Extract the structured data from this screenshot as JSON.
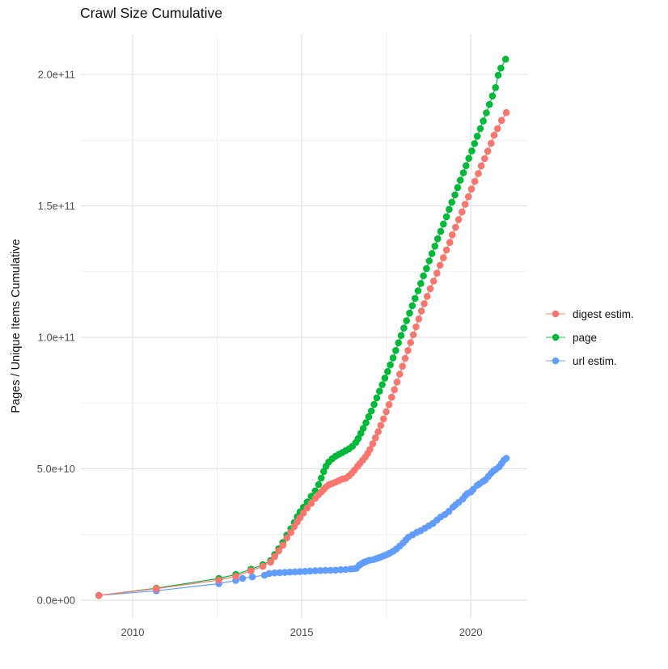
{
  "title": "Crawl Size Cumulative",
  "chart_data": {
    "type": "line",
    "title": "Crawl Size Cumulative",
    "ylabel": "Pages / Unique Items Cumulative",
    "xlabel": "",
    "grid": "on",
    "legend_position": "right",
    "value_unit_note": "point values stored in billions (1e9)",
    "xlim": [
      2008.47,
      2021.67
    ],
    "ylim_billions": [
      -6.77,
      215.4
    ],
    "x_ticks": [
      {
        "label": "2010",
        "value": 2010
      },
      {
        "label": "2015",
        "value": 2015
      },
      {
        "label": "2020",
        "value": 2020
      }
    ],
    "x_minor": [
      2012.5,
      2017.5
    ],
    "y_ticks": [
      {
        "label": "0.0e+00",
        "value": 0
      },
      {
        "label": "5.0e+10",
        "value": 50
      },
      {
        "label": "1.0e+11",
        "value": 100
      },
      {
        "label": "1.5e+11",
        "value": 150
      },
      {
        "label": "2.0e+11",
        "value": 200
      }
    ],
    "y_minor": [
      25,
      75,
      125,
      175
    ],
    "series": [
      {
        "name": "digest estim.",
        "color": "#F8766D",
        "z": 3,
        "points": [
          [
            2009.0,
            1.8
          ],
          [
            2010.7,
            4.4
          ],
          [
            2012.55,
            7.7
          ],
          [
            2013.05,
            9.1
          ],
          [
            2013.5,
            11.2
          ],
          [
            2013.85,
            12.9
          ],
          [
            2014.08,
            14.5
          ],
          [
            2014.2,
            16.6
          ],
          [
            2014.32,
            18.8
          ],
          [
            2014.44,
            20.9
          ],
          [
            2014.56,
            23.7
          ],
          [
            2014.68,
            25.8
          ],
          [
            2014.78,
            28.0
          ],
          [
            2014.87,
            29.8
          ],
          [
            2014.95,
            31.4
          ],
          [
            2015.05,
            33.2
          ],
          [
            2015.16,
            35.1
          ],
          [
            2015.28,
            36.9
          ],
          [
            2015.4,
            38.8
          ],
          [
            2015.5,
            40.2
          ],
          [
            2015.58,
            41.2
          ],
          [
            2015.65,
            42.2
          ],
          [
            2015.72,
            43.1
          ],
          [
            2015.8,
            43.9
          ],
          [
            2015.9,
            44.4
          ],
          [
            2016.0,
            44.9
          ],
          [
            2016.1,
            45.5
          ],
          [
            2016.2,
            46.1
          ],
          [
            2016.3,
            46.4
          ],
          [
            2016.4,
            47.3
          ],
          [
            2016.48,
            48.3
          ],
          [
            2016.56,
            49.5
          ],
          [
            2016.65,
            50.9
          ],
          [
            2016.72,
            52.0
          ],
          [
            2016.8,
            53.2
          ],
          [
            2016.88,
            54.5
          ],
          [
            2016.95,
            55.8
          ],
          [
            2017.02,
            57.4
          ],
          [
            2017.1,
            59.5
          ],
          [
            2017.18,
            61.8
          ],
          [
            2017.26,
            64.1
          ],
          [
            2017.34,
            66.5
          ],
          [
            2017.42,
            69.0
          ],
          [
            2017.5,
            71.7
          ],
          [
            2017.58,
            74.4
          ],
          [
            2017.66,
            77.2
          ],
          [
            2017.74,
            80.1
          ],
          [
            2017.82,
            83.0
          ],
          [
            2017.9,
            86.0
          ],
          [
            2017.98,
            89.0
          ],
          [
            2018.06,
            92.0
          ],
          [
            2018.14,
            95.0
          ],
          [
            2018.22,
            98.0
          ],
          [
            2018.3,
            101.0
          ],
          [
            2018.38,
            104.0
          ],
          [
            2018.46,
            107.0
          ],
          [
            2018.54,
            110.0
          ],
          [
            2018.62,
            112.8
          ],
          [
            2018.71,
            115.6
          ],
          [
            2018.8,
            118.5
          ],
          [
            2018.9,
            121.4
          ],
          [
            2019.0,
            124.4
          ],
          [
            2019.09,
            127.4
          ],
          [
            2019.19,
            130.3
          ],
          [
            2019.28,
            133.2
          ],
          [
            2019.38,
            136.1
          ],
          [
            2019.45,
            139.0
          ],
          [
            2019.55,
            141.9
          ],
          [
            2019.64,
            144.8
          ],
          [
            2019.74,
            147.7
          ],
          [
            2019.83,
            150.6
          ],
          [
            2019.93,
            153.5
          ],
          [
            2020.02,
            156.4
          ],
          [
            2020.12,
            159.3
          ],
          [
            2020.22,
            162.3
          ],
          [
            2020.31,
            165.2
          ],
          [
            2020.41,
            168.0
          ],
          [
            2020.5,
            170.8
          ],
          [
            2020.6,
            173.8
          ],
          [
            2020.69,
            176.9
          ],
          [
            2020.79,
            179.4
          ],
          [
            2020.91,
            182.5
          ],
          [
            2021.05,
            185.5
          ]
        ]
      },
      {
        "name": "page",
        "color": "#00BA38",
        "z": 1,
        "points": [
          [
            2009.0,
            1.8
          ],
          [
            2010.7,
            4.6
          ],
          [
            2012.55,
            8.3
          ],
          [
            2013.05,
            9.8
          ],
          [
            2013.5,
            11.8
          ],
          [
            2013.85,
            13.5
          ],
          [
            2014.08,
            15.1
          ],
          [
            2014.2,
            17.4
          ],
          [
            2014.32,
            19.6
          ],
          [
            2014.44,
            22.0
          ],
          [
            2014.56,
            24.8
          ],
          [
            2014.68,
            27.2
          ],
          [
            2014.78,
            29.6
          ],
          [
            2014.87,
            31.8
          ],
          [
            2014.95,
            33.6
          ],
          [
            2015.05,
            35.4
          ],
          [
            2015.16,
            37.4
          ],
          [
            2015.28,
            39.5
          ],
          [
            2015.4,
            41.6
          ],
          [
            2015.5,
            44.0
          ],
          [
            2015.58,
            46.5
          ],
          [
            2015.65,
            49.0
          ],
          [
            2015.72,
            51.0
          ],
          [
            2015.8,
            52.6
          ],
          [
            2015.9,
            53.8
          ],
          [
            2016.0,
            54.8
          ],
          [
            2016.1,
            55.5
          ],
          [
            2016.2,
            56.2
          ],
          [
            2016.3,
            56.9
          ],
          [
            2016.4,
            57.6
          ],
          [
            2016.5,
            58.6
          ],
          [
            2016.6,
            60.0
          ],
          [
            2016.67,
            61.5
          ],
          [
            2016.75,
            63.5
          ],
          [
            2016.82,
            65.4
          ],
          [
            2016.9,
            67.5
          ],
          [
            2016.98,
            69.8
          ],
          [
            2017.06,
            72.0
          ],
          [
            2017.14,
            74.5
          ],
          [
            2017.22,
            77.0
          ],
          [
            2017.3,
            79.5
          ],
          [
            2017.38,
            82.0
          ],
          [
            2017.46,
            84.5
          ],
          [
            2017.54,
            87.0
          ],
          [
            2017.62,
            89.5
          ],
          [
            2017.7,
            92.2
          ],
          [
            2017.78,
            95.0
          ],
          [
            2017.86,
            97.9
          ],
          [
            2017.94,
            100.7
          ],
          [
            2018.02,
            103.5
          ],
          [
            2018.1,
            106.3
          ],
          [
            2018.19,
            109.2
          ],
          [
            2018.27,
            112.0
          ],
          [
            2018.35,
            114.8
          ],
          [
            2018.44,
            117.7
          ],
          [
            2018.52,
            120.5
          ],
          [
            2018.6,
            123.4
          ],
          [
            2018.69,
            126.2
          ],
          [
            2018.77,
            129.1
          ],
          [
            2018.85,
            131.9
          ],
          [
            2018.94,
            134.7
          ],
          [
            2019.02,
            137.5
          ],
          [
            2019.11,
            140.3
          ],
          [
            2019.19,
            143.1
          ],
          [
            2019.28,
            145.9
          ],
          [
            2019.36,
            148.7
          ],
          [
            2019.44,
            151.4
          ],
          [
            2019.53,
            154.2
          ],
          [
            2019.61,
            157.0
          ],
          [
            2019.69,
            159.8
          ],
          [
            2019.78,
            162.6
          ],
          [
            2019.86,
            165.3
          ],
          [
            2019.94,
            168.1
          ],
          [
            2020.03,
            170.9
          ],
          [
            2020.11,
            173.7
          ],
          [
            2020.19,
            176.5
          ],
          [
            2020.28,
            179.4
          ],
          [
            2020.37,
            182.3
          ],
          [
            2020.46,
            185.4
          ],
          [
            2020.55,
            188.6
          ],
          [
            2020.64,
            191.8
          ],
          [
            2020.73,
            195.0
          ],
          [
            2020.81,
            199.7
          ],
          [
            2020.89,
            202.4
          ],
          [
            2021.03,
            205.8
          ]
        ]
      },
      {
        "name": "url estim.",
        "color": "#619CFF",
        "z": 2,
        "points": [
          [
            2009.0,
            1.8
          ],
          [
            2010.7,
            3.6
          ],
          [
            2012.55,
            6.3
          ],
          [
            2013.05,
            7.5
          ],
          [
            2013.25,
            8.3
          ],
          [
            2013.54,
            8.9
          ],
          [
            2013.9,
            9.5
          ],
          [
            2014.04,
            10.2
          ],
          [
            2014.2,
            10.4
          ],
          [
            2014.35,
            10.5
          ],
          [
            2014.5,
            10.6
          ],
          [
            2014.65,
            10.7
          ],
          [
            2014.8,
            10.8
          ],
          [
            2014.95,
            10.9
          ],
          [
            2015.1,
            11.0
          ],
          [
            2015.25,
            11.1
          ],
          [
            2015.4,
            11.2
          ],
          [
            2015.55,
            11.3
          ],
          [
            2015.7,
            11.35
          ],
          [
            2015.85,
            11.4
          ],
          [
            2016.0,
            11.45
          ],
          [
            2016.15,
            11.6
          ],
          [
            2016.3,
            11.7
          ],
          [
            2016.45,
            11.9
          ],
          [
            2016.55,
            12.0
          ],
          [
            2016.62,
            12.2
          ],
          [
            2016.7,
            13.3
          ],
          [
            2016.77,
            13.9
          ],
          [
            2016.84,
            14.4
          ],
          [
            2016.91,
            14.8
          ],
          [
            2017.0,
            15.2
          ],
          [
            2017.1,
            15.4
          ],
          [
            2017.18,
            15.7
          ],
          [
            2017.26,
            16.1
          ],
          [
            2017.35,
            16.5
          ],
          [
            2017.44,
            17.0
          ],
          [
            2017.52,
            17.4
          ],
          [
            2017.6,
            17.9
          ],
          [
            2017.7,
            18.6
          ],
          [
            2017.8,
            19.5
          ],
          [
            2017.9,
            20.6
          ],
          [
            2018.0,
            21.8
          ],
          [
            2018.08,
            23.0
          ],
          [
            2018.16,
            24.0
          ],
          [
            2018.28,
            24.9
          ],
          [
            2018.4,
            25.8
          ],
          [
            2018.52,
            26.5
          ],
          [
            2018.64,
            27.4
          ],
          [
            2018.76,
            28.3
          ],
          [
            2018.88,
            29.2
          ],
          [
            2019.0,
            30.5
          ],
          [
            2019.11,
            31.7
          ],
          [
            2019.23,
            32.6
          ],
          [
            2019.35,
            33.8
          ],
          [
            2019.47,
            35.4
          ],
          [
            2019.55,
            36.3
          ],
          [
            2019.64,
            37.2
          ],
          [
            2019.76,
            38.5
          ],
          [
            2019.83,
            39.7
          ],
          [
            2019.9,
            40.6
          ],
          [
            2020.0,
            41.2
          ],
          [
            2020.07,
            42.2
          ],
          [
            2020.19,
            43.7
          ],
          [
            2020.26,
            44.3
          ],
          [
            2020.36,
            45.2
          ],
          [
            2020.43,
            45.8
          ],
          [
            2020.52,
            47.1
          ],
          [
            2020.6,
            48.3
          ],
          [
            2020.67,
            49.2
          ],
          [
            2020.74,
            49.8
          ],
          [
            2020.84,
            50.8
          ],
          [
            2020.91,
            52.0
          ],
          [
            2020.98,
            53.3
          ],
          [
            2021.05,
            54.0
          ]
        ]
      }
    ]
  }
}
